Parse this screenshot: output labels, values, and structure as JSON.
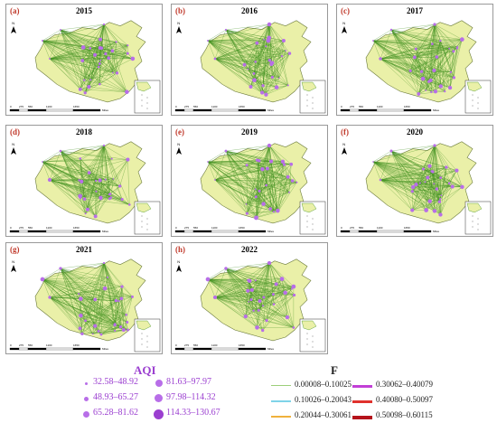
{
  "panels": [
    {
      "label": "(a)",
      "year": "2015"
    },
    {
      "label": "(b)",
      "year": "2016"
    },
    {
      "label": "(c)",
      "year": "2017"
    },
    {
      "label": "(d)",
      "year": "2018"
    },
    {
      "label": "(e)",
      "year": "2019"
    },
    {
      "label": "(f)",
      "year": "2020"
    },
    {
      "label": "(g)",
      "year": "2021"
    },
    {
      "label": "(h)",
      "year": "2022"
    }
  ],
  "scale_bar": {
    "ticks": [
      "0",
      "275",
      "550",
      "1100",
      "1650"
    ],
    "unit": "Miles"
  },
  "north_arrow": "N",
  "legend": {
    "aqi_title": "AQI",
    "aqi_items": [
      "32.58–48.92",
      "48.93–65.27",
      "65.28–81.62",
      "81.63–97.97",
      "97.98–114.32",
      "114.33–130.67"
    ],
    "f_title": "F",
    "f_items": [
      {
        "label": "0.00008–0.10025",
        "color": "#9ccf7a"
      },
      {
        "label": "0.10026–0.20043",
        "color": "#7fd3e8"
      },
      {
        "label": "0.20044–0.30061",
        "color": "#f0b13c"
      },
      {
        "label": "0.30062–0.40079",
        "color": "#c23fd6"
      },
      {
        "label": "0.40080–0.50097",
        "color": "#e0312d"
      },
      {
        "label": "0.50098–0.60115",
        "color": "#b5131b"
      }
    ]
  },
  "colors": {
    "land": "#eaf0a8",
    "border": "#6a7a3a",
    "network": "#3f8f1f",
    "node": "#b86ee8"
  }
}
